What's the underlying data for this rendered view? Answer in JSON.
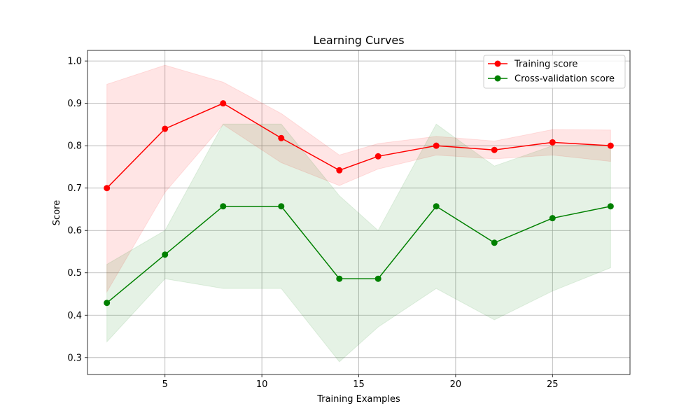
{
  "chart_data": {
    "type": "line",
    "title": "Learning Curves",
    "xlabel": "Training Examples",
    "ylabel": "Score",
    "xlim": [
      1.0,
      29.0
    ],
    "ylim": [
      0.26,
      1.025
    ],
    "xticks": [
      5,
      10,
      15,
      20,
      25
    ],
    "yticks": [
      0.3,
      0.4,
      0.5,
      0.6,
      0.7,
      0.8,
      0.9,
      1.0
    ],
    "grid": true,
    "legend": "top-right",
    "x": [
      2,
      5,
      8,
      11,
      14,
      16,
      19,
      22,
      25,
      28
    ],
    "series": [
      {
        "name": "Training score",
        "color": "#ff0000",
        "values": [
          0.7,
          0.84,
          0.9,
          0.818,
          0.742,
          0.775,
          0.8,
          0.79,
          0.808,
          0.8
        ],
        "lower": [
          0.455,
          0.69,
          0.85,
          0.76,
          0.706,
          0.745,
          0.778,
          0.769,
          0.778,
          0.763
        ],
        "upper": [
          0.945,
          0.99,
          0.95,
          0.876,
          0.778,
          0.805,
          0.822,
          0.811,
          0.838,
          0.837
        ]
      },
      {
        "name": "Cross-validation score",
        "color": "#008000",
        "values": [
          0.429,
          0.543,
          0.657,
          0.657,
          0.486,
          0.486,
          0.657,
          0.571,
          0.629,
          0.657
        ],
        "lower": [
          0.337,
          0.486,
          0.463,
          0.463,
          0.29,
          0.372,
          0.463,
          0.389,
          0.457,
          0.512
        ],
        "upper": [
          0.52,
          0.6,
          0.851,
          0.851,
          0.682,
          0.6,
          0.851,
          0.752,
          0.8,
          0.802
        ]
      }
    ]
  }
}
